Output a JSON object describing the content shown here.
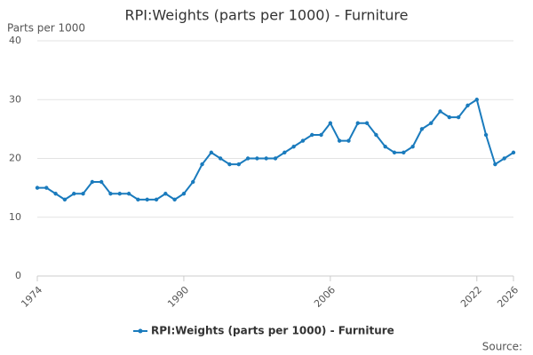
{
  "chart_data": {
    "type": "line",
    "title": "RPI:Weights (parts per 1000) - Furniture",
    "y_label": "Parts per 1000",
    "source": "Source:",
    "x": [
      1974,
      1975,
      1976,
      1977,
      1978,
      1979,
      1980,
      1981,
      1982,
      1983,
      1984,
      1985,
      1986,
      1987,
      1988,
      1989,
      1990,
      1991,
      1992,
      1993,
      1994,
      1995,
      1996,
      1997,
      1998,
      1999,
      2000,
      2001,
      2002,
      2003,
      2004,
      2005,
      2006,
      2007,
      2008,
      2009,
      2010,
      2011,
      2012,
      2013,
      2014,
      2015,
      2016,
      2017,
      2018,
      2019,
      2020,
      2021,
      2022,
      2023,
      2024,
      2025,
      2026
    ],
    "series": [
      {
        "name": "RPI:Weights (parts per 1000) - Furniture",
        "color": "#1a7bbd",
        "values": [
          15,
          15,
          14,
          13,
          14,
          14,
          16,
          16,
          14,
          14,
          14,
          13,
          13,
          13,
          14,
          13,
          14,
          16,
          19,
          21,
          20,
          19,
          19,
          20,
          20,
          20,
          20,
          21,
          22,
          23,
          24,
          24,
          26,
          23,
          23,
          26,
          26,
          24,
          22,
          21,
          21,
          22,
          25,
          26,
          28,
          27,
          27,
          29,
          30,
          24,
          19,
          20,
          21
        ]
      }
    ],
    "xlim": [
      1974,
      2026
    ],
    "xticks": [
      1974,
      1990,
      2006,
      2022,
      2026
    ],
    "ylim": [
      0,
      40
    ],
    "yticks": [
      0,
      10,
      20,
      30,
      40
    ],
    "grid": true
  }
}
